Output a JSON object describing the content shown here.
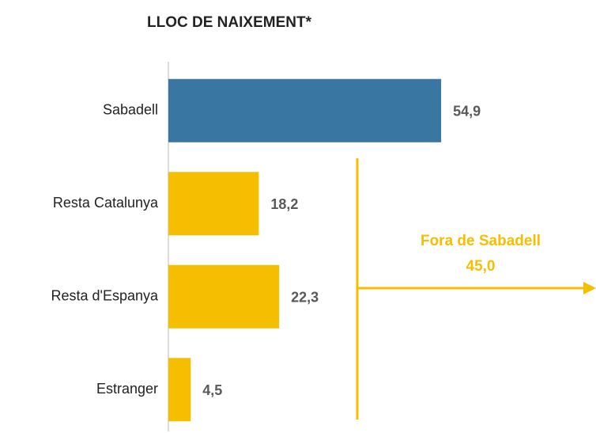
{
  "chart_data": {
    "type": "barh",
    "title": "LLOC DE NAIXEMENT*",
    "categories": [
      "Sabadell",
      "Resta Catalunya",
      "Resta d'Espanya",
      "Estranger"
    ],
    "values": [
      54.9,
      18.2,
      22.3,
      4.5
    ],
    "value_labels": [
      "54,9",
      "18,2",
      "22,3",
      "4,5"
    ],
    "colors": [
      "#3a76a2",
      "#f5be00",
      "#f5be00",
      "#f5be00"
    ],
    "xlim": [
      0,
      70
    ],
    "annotation": {
      "text": "Fora de Sabadell",
      "value": 45.0,
      "label": "45,0",
      "color": "#f5be00"
    }
  }
}
